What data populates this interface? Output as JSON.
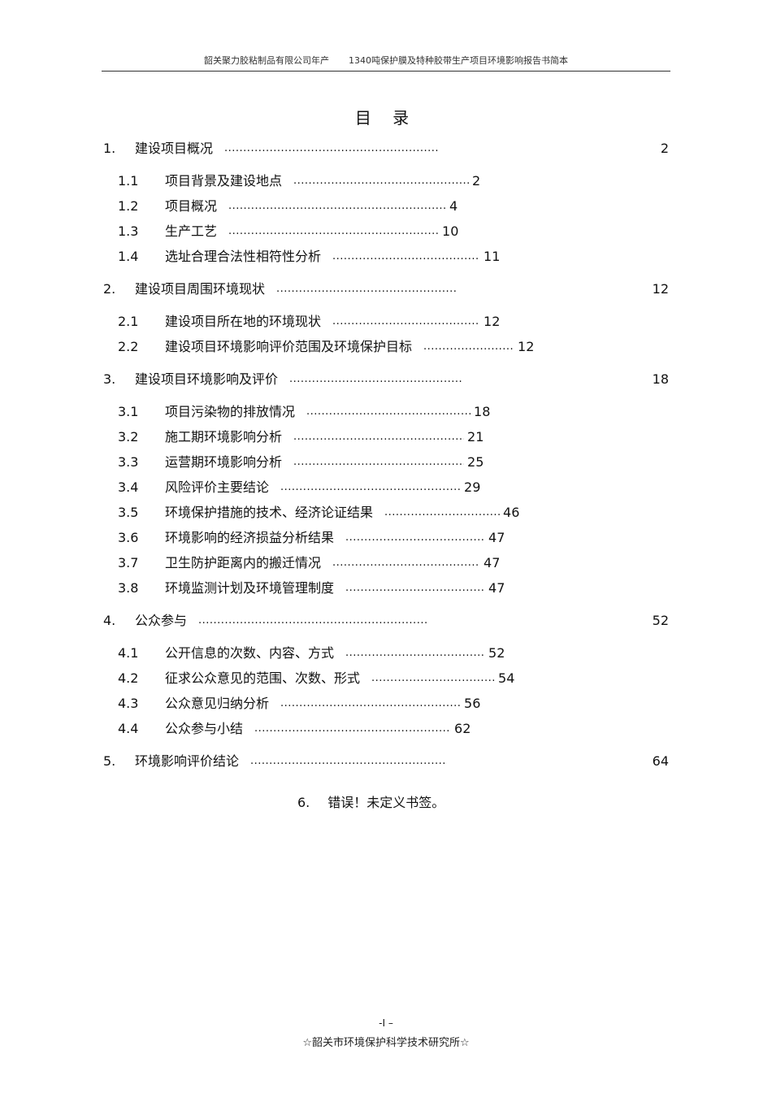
{
  "header": {
    "left": "韶关聚力胶粘制品有限公司年产",
    "right": "1340吨保护膜及特种胶带生产项目环境影响报告书简本"
  },
  "title": "目 录",
  "toc": [
    {
      "level": 1,
      "num": "1.",
      "text": "建设项目概况",
      "page": "2"
    },
    {
      "level": 2,
      "num": "1.1",
      "text": "项目背景及建设地点",
      "page": "2"
    },
    {
      "level": 2,
      "num": "1.2",
      "text": "项目概况",
      "page": "4"
    },
    {
      "level": 2,
      "num": "1.3",
      "text": "生产工艺",
      "page": "10"
    },
    {
      "level": 2,
      "num": "1.4",
      "text": "选址合理合法性相符性分析",
      "page": "11"
    },
    {
      "level": 1,
      "num": "2.",
      "text": "建设项目周围环境现状",
      "page": "12"
    },
    {
      "level": 2,
      "num": "2.1",
      "text": "建设项目所在地的环境现状",
      "page": "12"
    },
    {
      "level": 2,
      "num": "2.2",
      "text": "建设项目环境影响评价范围及环境保护目标",
      "page": "12"
    },
    {
      "level": 1,
      "num": "3.",
      "text": "建设项目环境影响及评价",
      "page": "18"
    },
    {
      "level": 2,
      "num": "3.1",
      "text": "项目污染物的排放情况",
      "page": "18"
    },
    {
      "level": 2,
      "num": "3.2",
      "text": "施工期环境影响分析",
      "page": "21"
    },
    {
      "level": 2,
      "num": "3.3",
      "text": "运营期环境影响分析",
      "page": "25"
    },
    {
      "level": 2,
      "num": "3.4",
      "text": "风险评价主要结论",
      "page": "29"
    },
    {
      "level": 2,
      "num": "3.5",
      "text": "环境保护措施的技术、经济论证结果",
      "page": "46"
    },
    {
      "level": 2,
      "num": "3.6",
      "text": "环境影响的经济损益分析结果",
      "page": "47"
    },
    {
      "level": 2,
      "num": "3.7",
      "text": "卫生防护距离内的搬迁情况",
      "page": "47"
    },
    {
      "level": 2,
      "num": "3.8",
      "text": "环境监测计划及环境管理制度",
      "page": "47"
    },
    {
      "level": 1,
      "num": "4.",
      "text": "公众参与",
      "page": "52"
    },
    {
      "level": 2,
      "num": "4.1",
      "text": "公开信息的次数、内容、方式",
      "page": "52"
    },
    {
      "level": 2,
      "num": "4.2",
      "text": "征求公众意见的范围、次数、形式",
      "page": "54"
    },
    {
      "level": 2,
      "num": "4.3",
      "text": "公众意见归纳分析",
      "page": "56"
    },
    {
      "level": 2,
      "num": "4.4",
      "text": "公众参与小结",
      "page": "62"
    },
    {
      "level": 1,
      "num": "5.",
      "text": "环境影响评价结论",
      "page": "64"
    }
  ],
  "error_entry": {
    "num": "6.",
    "text": "错误！未定义书签。"
  },
  "footer": {
    "page_number": "-I  –",
    "org": "☆韶关市环境保护科学技术研究所☆"
  }
}
